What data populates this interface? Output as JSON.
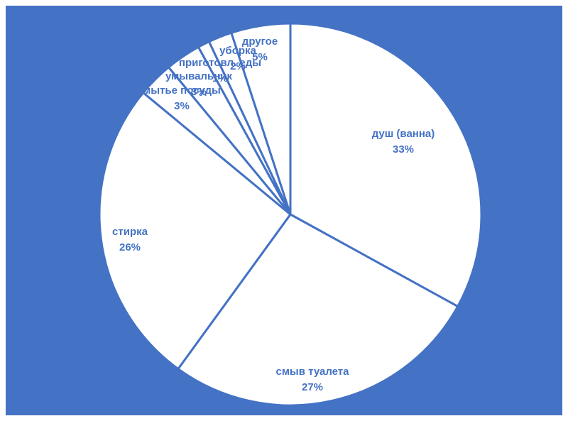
{
  "chart_data": {
    "type": "pie",
    "title": "",
    "categories": [
      "душ (ванна)",
      "смыв туалета",
      "стирка",
      "мытье посуды",
      "умывальник",
      "приготовл. еды",
      "уборка",
      "другое"
    ],
    "values": [
      33,
      27,
      26,
      3,
      3,
      1,
      2,
      5
    ],
    "value_labels": [
      "33%",
      "27%",
      "26%",
      "3%",
      "3%",
      "1%",
      "2%",
      "5%"
    ],
    "legend": "none",
    "colors": {
      "background": "#4472C4",
      "slice_fill": "#FFFFFF",
      "slice_border": "#4472C4",
      "label": "#4472C4"
    }
  }
}
